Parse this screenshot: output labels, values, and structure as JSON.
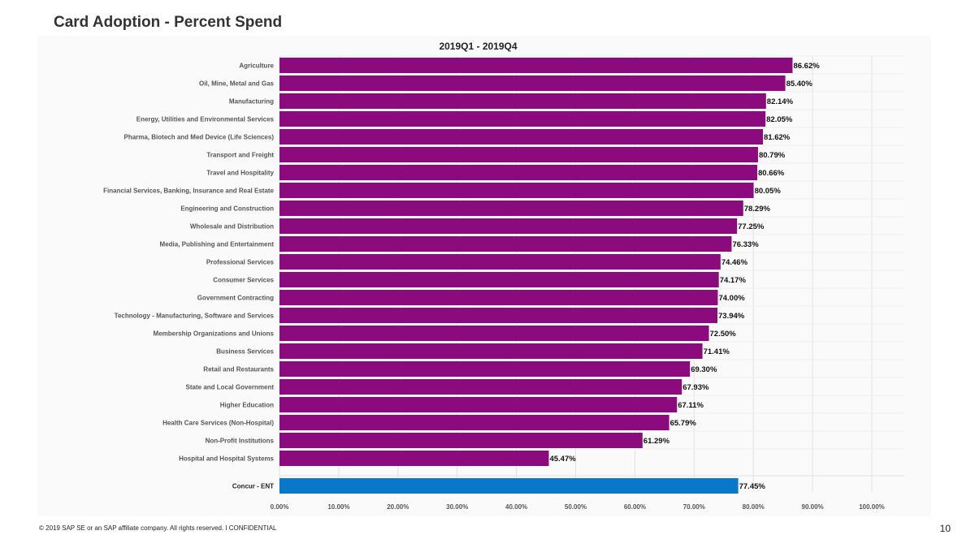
{
  "slide": {
    "title": "Card Adoption - Percent Spend",
    "footer": "© 2019 SAP SE or an SAP affiliate company. All rights reserved.  ǀ   CONFIDENTIAL",
    "page_number": "10"
  },
  "colors": {
    "industry_bar": "#8b0a7e",
    "benchmark_bar": "#0a78c8",
    "grid": "#e2e2e2",
    "label": "#555555"
  },
  "chart_data": {
    "type": "bar",
    "orientation": "horizontal",
    "title": "2019Q1 - 2019Q4",
    "xlabel": "",
    "ylabel": "",
    "xlim": [
      0,
      100
    ],
    "x_ticks": [
      "0.00%",
      "10.00%",
      "20.00%",
      "30.00%",
      "40.00%",
      "50.00%",
      "60.00%",
      "70.00%",
      "80.00%",
      "90.00%",
      "100.00%"
    ],
    "grid": true,
    "categories": [
      "Agriculture",
      "Oil, Mine, Metal and Gas",
      "Manufacturing",
      "Energy, Utilities and Environmental Services",
      "Pharma, Biotech and Med Device (Life Sciences)",
      "Transport and Freight",
      "Travel and Hospitality",
      "Financial Services, Banking, Insurance and Real Estate",
      "Engineering and Construction",
      "Wholesale and Distribution",
      "Media, Publishing and Entertainment",
      "Professional Services",
      "Consumer Services",
      "Government Contracting",
      "Technology - Manufacturing, Software and Services",
      "Membership Organizations and Unions",
      "Business Services",
      "Retail and Restaurants",
      "State and Local Government",
      "Higher Education",
      "Health Care Services (Non-Hospital)",
      "Non-Profit Institutions",
      "Hospital and Hospital Systems"
    ],
    "values": [
      86.62,
      85.4,
      82.14,
      82.05,
      81.62,
      80.79,
      80.66,
      80.05,
      78.29,
      77.25,
      76.33,
      74.46,
      74.17,
      74.0,
      73.94,
      72.5,
      71.41,
      69.3,
      67.93,
      67.11,
      65.79,
      61.29,
      45.47
    ],
    "value_labels": [
      "86.62%",
      "85.40%",
      "82.14%",
      "82.05%",
      "81.62%",
      "80.79%",
      "80.66%",
      "80.05%",
      "78.29%",
      "77.25%",
      "76.33%",
      "74.46%",
      "74.17%",
      "74.00%",
      "73.94%",
      "72.50%",
      "71.41%",
      "69.30%",
      "67.93%",
      "67.11%",
      "65.79%",
      "61.29%",
      "45.47%"
    ],
    "benchmark": {
      "category": "Concur - ENT",
      "value": 77.45,
      "value_label": "77.45%"
    }
  }
}
